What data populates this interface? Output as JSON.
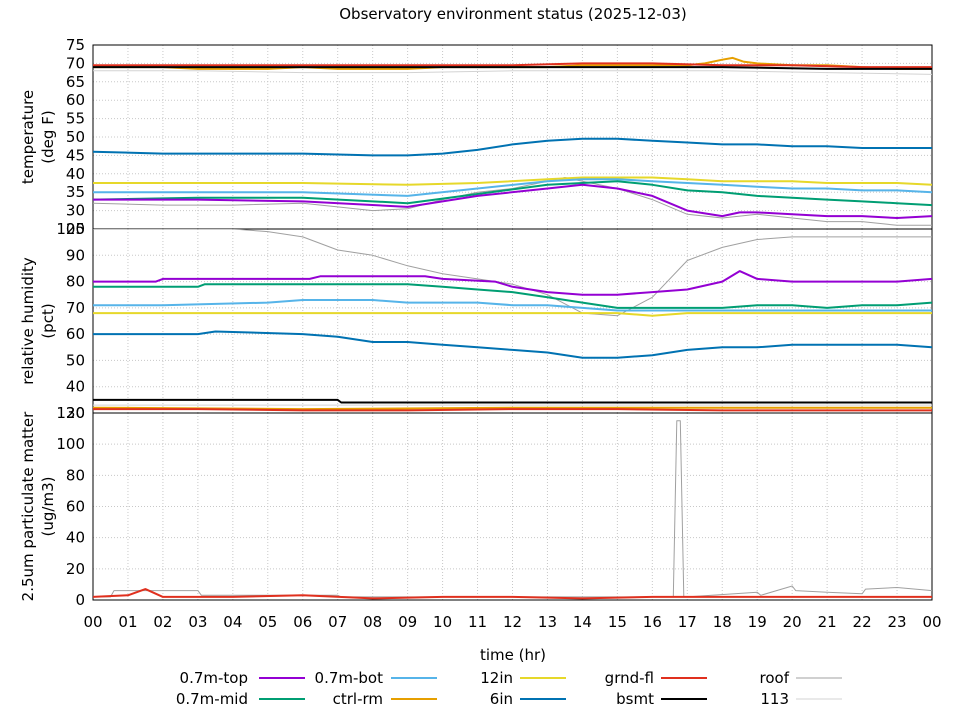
{
  "title": "Observatory environment status (2025-12-03)",
  "xlabel": "time (hr)",
  "x_ticks": [
    "00",
    "01",
    "02",
    "03",
    "04",
    "05",
    "06",
    "07",
    "08",
    "09",
    "10",
    "11",
    "12",
    "13",
    "14",
    "15",
    "16",
    "17",
    "18",
    "19",
    "20",
    "21",
    "22",
    "23",
    "00"
  ],
  "legend": [
    {
      "name": "0.7m-top",
      "color": "#9400d3"
    },
    {
      "name": "0.7m-bot",
      "color": "#56b4e9"
    },
    {
      "name": "12in",
      "color": "#e6d82a"
    },
    {
      "name": "grnd-fl",
      "color": "#e0301e"
    },
    {
      "name": "roof",
      "color": "#a0a0a0"
    },
    {
      "name": "0.7m-mid",
      "color": "#009e73"
    },
    {
      "name": "ctrl-rm",
      "color": "#e69f00"
    },
    {
      "name": "6in",
      "color": "#0072b2"
    },
    {
      "name": "bsmt",
      "color": "#000000"
    },
    {
      "name": "113",
      "color": "#d3d3d3"
    }
  ],
  "chart_data": [
    {
      "type": "line",
      "ylabel": "temperature\n(deg F)",
      "ylim": [
        25,
        75
      ],
      "y_ticks": [
        25,
        30,
        35,
        40,
        45,
        50,
        55,
        60,
        65,
        70,
        75
      ],
      "series": [
        {
          "name": "0.7m-top",
          "color": "#9400d3",
          "x": [
            0,
            3,
            6,
            9,
            11,
            13,
            14,
            15,
            16,
            17,
            18,
            18.5,
            19,
            20,
            21,
            22,
            23,
            24
          ],
          "y": [
            33,
            33,
            32.5,
            31,
            34,
            36,
            37,
            36,
            34,
            30,
            28.5,
            29.5,
            29.5,
            29,
            28.5,
            28.5,
            28,
            28.5
          ]
        },
        {
          "name": "0.7m-mid",
          "color": "#009e73",
          "x": [
            0,
            3,
            6,
            9,
            11,
            13,
            14,
            15,
            16,
            17,
            18,
            19,
            20,
            21,
            22,
            23,
            24
          ],
          "y": [
            33,
            33.5,
            33.5,
            32,
            34.5,
            37,
            37.5,
            38,
            37,
            35.5,
            35,
            34,
            33.5,
            33,
            32.5,
            32,
            31.5
          ]
        },
        {
          "name": "0.7m-bot",
          "color": "#56b4e9",
          "x": [
            0,
            3,
            6,
            9,
            11,
            13,
            14,
            15,
            16,
            17,
            18,
            19,
            20,
            21,
            22,
            23,
            24
          ],
          "y": [
            35,
            35,
            35,
            34,
            36,
            38,
            38.5,
            38.5,
            38,
            37.5,
            37,
            36.5,
            36,
            36,
            35.5,
            35.5,
            35
          ]
        },
        {
          "name": "ctrl-rm",
          "color": "#e69f00",
          "x": [
            0,
            1,
            2,
            3,
            4,
            5,
            6,
            7,
            8,
            9,
            10,
            11,
            12,
            13,
            14,
            15,
            16,
            17,
            17.5,
            18,
            18.3,
            18.6,
            19,
            20,
            21,
            22,
            23,
            24
          ],
          "y": [
            69,
            69,
            69,
            68.5,
            68.5,
            68.5,
            69,
            68.5,
            68.5,
            68.5,
            69,
            69,
            69,
            69,
            69.5,
            69.5,
            69.5,
            69.5,
            70,
            71,
            71.5,
            70.5,
            70,
            69.5,
            69.5,
            69,
            68.5,
            68.5
          ]
        },
        {
          "name": "12in",
          "color": "#e6d82a",
          "x": [
            0,
            3,
            6,
            9,
            11,
            13,
            14,
            15,
            16,
            17,
            18,
            19,
            20,
            21,
            22,
            23,
            24
          ],
          "y": [
            37.5,
            37.5,
            37.5,
            37,
            37.5,
            38.5,
            39,
            39,
            39,
            38.5,
            38,
            38,
            38,
            37.5,
            37.5,
            37.5,
            37
          ]
        },
        {
          "name": "6in",
          "color": "#0072b2",
          "x": [
            0,
            2,
            4,
            6,
            8,
            9,
            10,
            11,
            12,
            13,
            14,
            15,
            16,
            17,
            18,
            19,
            20,
            21,
            22,
            23,
            24
          ],
          "y": [
            46,
            45.5,
            45.5,
            45.5,
            45,
            45,
            45.5,
            46.5,
            48,
            49,
            49.5,
            49.5,
            49,
            48.5,
            48,
            48,
            47.5,
            47.5,
            47,
            47,
            47
          ]
        },
        {
          "name": "grnd-fl",
          "color": "#e0301e",
          "x": [
            0,
            3,
            6,
            9,
            12,
            14,
            15,
            16,
            18,
            20,
            22,
            24
          ],
          "y": [
            69.5,
            69.5,
            69.5,
            69.5,
            69.5,
            70,
            70,
            70,
            69.5,
            69.5,
            69,
            69
          ]
        },
        {
          "name": "bsmt",
          "color": "#000000",
          "x": [
            0,
            3,
            6,
            9,
            12,
            15,
            18,
            21,
            24
          ],
          "y": [
            69,
            69,
            69,
            69,
            69,
            69,
            69,
            68.5,
            68.5
          ]
        },
        {
          "name": "roof",
          "color": "#a0a0a0",
          "x": [
            0,
            2,
            4,
            6,
            7,
            8,
            9,
            10,
            11,
            12,
            13,
            13.5,
            14,
            15,
            16,
            16.5,
            17,
            18,
            19,
            20,
            21,
            22,
            23,
            24
          ],
          "y": [
            32,
            31.5,
            31.5,
            32,
            31,
            30,
            30.5,
            33,
            35,
            36,
            38,
            39,
            38,
            36,
            33,
            31,
            29,
            28,
            29,
            28,
            27,
            27,
            26,
            26
          ]
        },
        {
          "name": "113",
          "color": "#d3d3d3",
          "x": [
            0,
            3,
            6,
            9,
            12,
            15,
            18,
            21,
            24
          ],
          "y": [
            68,
            68,
            67.5,
            67.5,
            68,
            68,
            68,
            67.5,
            67
          ]
        }
      ]
    },
    {
      "type": "line",
      "ylabel": "relative humidity\n(pct)",
      "ylim": [
        30,
        100
      ],
      "y_ticks": [
        30,
        40,
        50,
        60,
        70,
        80,
        90,
        100
      ],
      "series": [
        {
          "name": "0.7m-top",
          "color": "#9400d3",
          "x": [
            0,
            1.8,
            2,
            6.2,
            6.5,
            9.5,
            10,
            11.5,
            12,
            13,
            14,
            15,
            16,
            17,
            18,
            18.5,
            19,
            20,
            21,
            22,
            23,
            24
          ],
          "y": [
            80,
            80,
            81,
            81,
            82,
            82,
            81,
            80,
            78,
            76,
            75,
            75,
            76,
            77,
            80,
            84,
            81,
            80,
            80,
            80,
            80,
            81
          ]
        },
        {
          "name": "0.7m-mid",
          "color": "#009e73",
          "x": [
            0,
            3,
            3.2,
            6,
            9,
            10,
            11,
            12,
            13,
            14,
            15,
            16,
            17,
            18,
            19,
            20,
            21,
            22,
            23,
            24
          ],
          "y": [
            78,
            78,
            79,
            79,
            79,
            78,
            77,
            76,
            74,
            72,
            70,
            70,
            70,
            70,
            71,
            71,
            70,
            71,
            71,
            72
          ]
        },
        {
          "name": "0.7m-bot",
          "color": "#56b4e9",
          "x": [
            0,
            2,
            5,
            6,
            8,
            9,
            10,
            11,
            12,
            13,
            14,
            15,
            16,
            17,
            18,
            19,
            20,
            21,
            22,
            23,
            24
          ],
          "y": [
            71,
            71,
            72,
            73,
            73,
            72,
            72,
            72,
            71,
            71,
            70,
            69,
            69,
            69,
            69,
            69,
            69,
            69,
            69,
            69,
            69
          ]
        },
        {
          "name": "ctrl-rm",
          "color": "#e69f00",
          "x": [
            0,
            6,
            12,
            18,
            24
          ],
          "y": [
            32,
            31.5,
            32,
            32,
            32
          ]
        },
        {
          "name": "12in",
          "color": "#e6d82a",
          "x": [
            0,
            3,
            6,
            9,
            12,
            15,
            16,
            17,
            18,
            21,
            24
          ],
          "y": [
            68,
            68,
            68,
            68,
            68,
            68,
            67,
            68,
            68,
            68,
            68
          ]
        },
        {
          "name": "6in",
          "color": "#0072b2",
          "x": [
            0,
            3,
            3.5,
            6,
            7,
            8,
            9,
            10,
            11,
            12,
            13,
            14,
            15,
            16,
            17,
            18,
            19,
            20,
            21,
            22,
            23,
            24
          ],
          "y": [
            60,
            60,
            61,
            60,
            59,
            57,
            57,
            56,
            55,
            54,
            53,
            51,
            51,
            52,
            54,
            55,
            55,
            56,
            56,
            56,
            56,
            55
          ]
        },
        {
          "name": "grnd-fl",
          "color": "#e0301e",
          "x": [
            0,
            3,
            6,
            9,
            12,
            15,
            18,
            21,
            24
          ],
          "y": [
            31.5,
            31.5,
            31,
            31,
            31.5,
            31.5,
            31,
            31,
            31
          ]
        },
        {
          "name": "bsmt",
          "color": "#000000",
          "x": [
            0,
            7,
            7.1,
            12,
            15,
            18,
            21,
            24
          ],
          "y": [
            35,
            35,
            34,
            34,
            34,
            34,
            34,
            34
          ]
        },
        {
          "name": "roof",
          "color": "#a0a0a0",
          "x": [
            0,
            2,
            4,
            5,
            6,
            7,
            8,
            9,
            10,
            11,
            12,
            13,
            14,
            15,
            16,
            17,
            18,
            19,
            20,
            21,
            22,
            23,
            24
          ],
          "y": [
            100,
            100,
            100,
            99,
            97,
            92,
            90,
            86,
            83,
            81,
            79,
            75,
            68,
            67,
            74,
            88,
            93,
            96,
            97,
            97,
            97,
            97,
            97
          ]
        },
        {
          "name": "113",
          "color": "#d3d3d3",
          "x": [
            0,
            6,
            12,
            18,
            24
          ],
          "y": [
            33,
            33,
            33,
            33,
            33
          ]
        }
      ]
    },
    {
      "type": "line",
      "ylabel": "2.5um particulate matter\n(ug/m3)",
      "ylim": [
        0,
        120
      ],
      "y_ticks": [
        0,
        20,
        40,
        60,
        80,
        100,
        120
      ],
      "series": [
        {
          "name": "roof",
          "color": "#a0a0a0",
          "x": [
            0,
            0.5,
            0.6,
            3,
            3.1,
            7,
            7.1,
            16.6,
            16.7,
            16.8,
            16.9,
            17,
            19,
            19.1,
            20,
            20.1,
            21,
            22,
            22.1,
            23,
            24
          ],
          "y": [
            2,
            2,
            6,
            6,
            3,
            3,
            2,
            2,
            115,
            115,
            2,
            2,
            5,
            3,
            9,
            6,
            5,
            4,
            7,
            8,
            6
          ]
        },
        {
          "name": "grnd-fl",
          "color": "#e0301e",
          "x": [
            0,
            1,
            1.5,
            2,
            4,
            6,
            8,
            10,
            12,
            14,
            16,
            18,
            20,
            22,
            24
          ],
          "y": [
            2,
            3,
            7,
            2,
            2,
            3,
            1,
            2,
            2,
            1,
            2,
            2,
            2,
            2,
            2
          ]
        }
      ]
    }
  ]
}
